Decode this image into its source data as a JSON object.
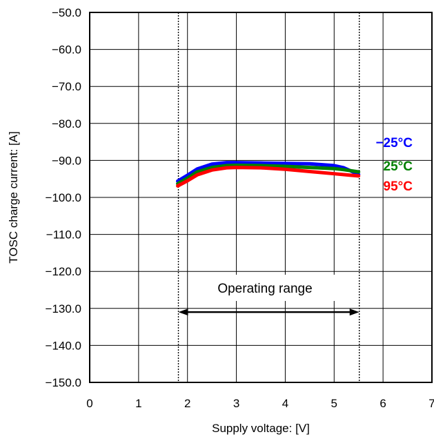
{
  "chart_data": {
    "type": "line",
    "title": "",
    "xlabel": "Supply voltage: [V]",
    "ylabel": "TOSC charge current: [A]",
    "xlim": [
      0,
      7
    ],
    "ylim": [
      -150,
      -50
    ],
    "grid": true,
    "x_ticks": [
      "0",
      "1",
      "2",
      "3",
      "4",
      "5",
      "6",
      "7"
    ],
    "y_ticks": [
      "−50.0",
      "−60.0",
      "−70.0",
      "−80.0",
      "−90.0",
      "−100.0",
      "−110.0",
      "−120.0",
      "−130.0",
      "−140.0",
      "−150.0"
    ],
    "series": [
      {
        "name": "−25°C",
        "color": "#0000ff",
        "x": [
          1.8,
          2.0,
          2.2,
          2.5,
          2.8,
          3.0,
          3.5,
          4.0,
          4.5,
          5.0,
          5.2,
          5.5
        ],
        "y": [
          -95.6,
          -94.0,
          -92.3,
          -91.0,
          -90.6,
          -90.6,
          -90.7,
          -90.8,
          -90.9,
          -91.4,
          -92.0,
          -93.8
        ]
      },
      {
        "name": "25°C",
        "color": "#008000",
        "x": [
          1.8,
          2.0,
          2.2,
          2.5,
          2.8,
          3.0,
          3.5,
          4.0,
          4.5,
          5.0,
          5.2,
          5.5
        ],
        "y": [
          -96.3,
          -94.8,
          -93.1,
          -91.9,
          -91.4,
          -91.3,
          -91.4,
          -91.6,
          -91.9,
          -92.2,
          -92.5,
          -93.1
        ]
      },
      {
        "name": "95°C",
        "color": "#ff0000",
        "x": [
          1.8,
          2.0,
          2.2,
          2.5,
          2.8,
          3.0,
          3.5,
          4.0,
          4.5,
          5.0,
          5.5
        ],
        "y": [
          -96.9,
          -95.5,
          -93.9,
          -92.6,
          -92.0,
          -91.9,
          -92.0,
          -92.4,
          -93.0,
          -93.6,
          -94.2
        ]
      }
    ],
    "annotations": {
      "range_text": "Operating range",
      "range_start": 1.8,
      "range_end": 5.5,
      "range_y": -131
    }
  }
}
